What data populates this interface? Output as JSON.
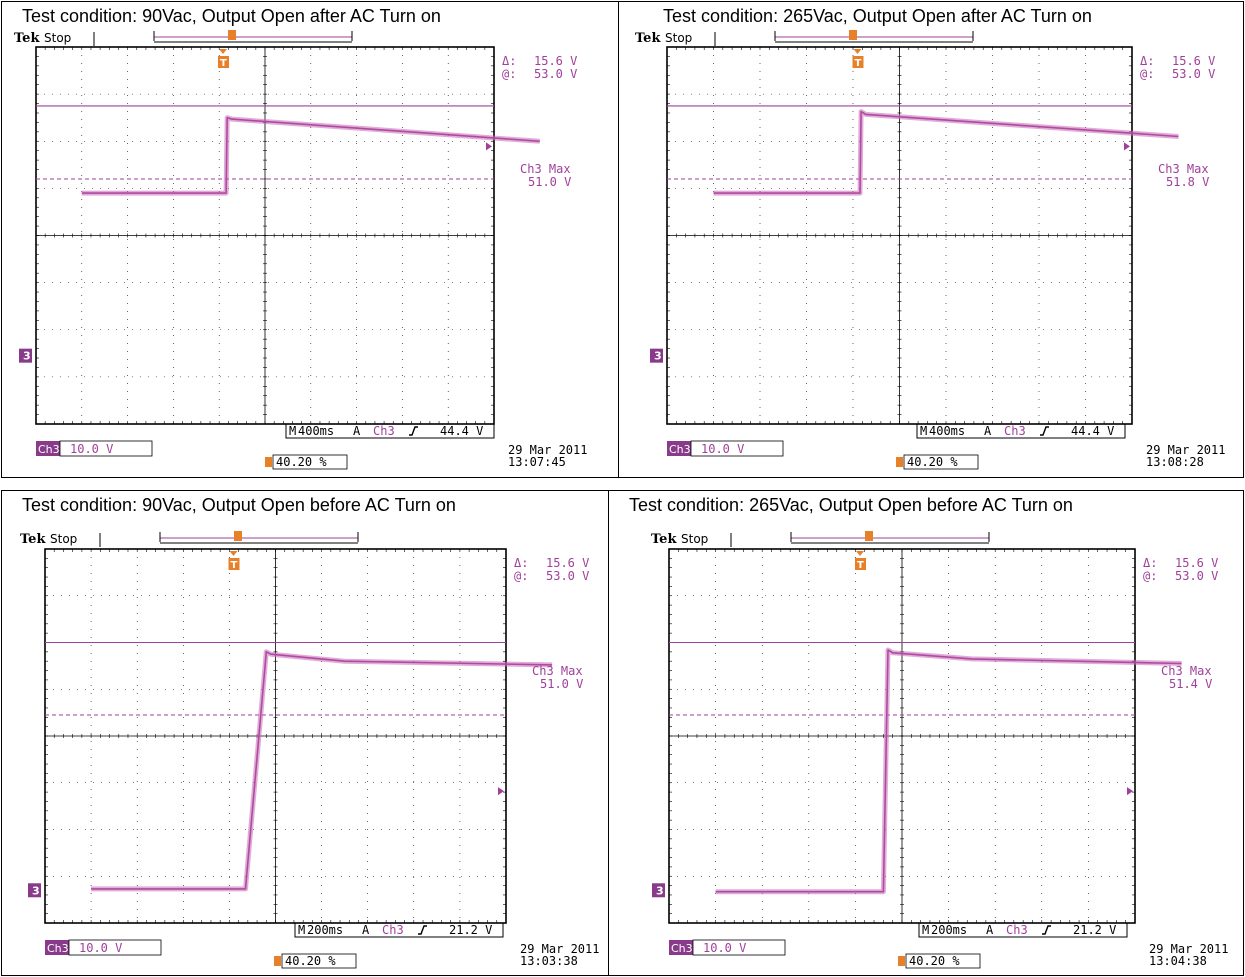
{
  "colors": {
    "trace": "#b04aa0",
    "trace_fill": "#c868b8",
    "cursor": "#a0409a",
    "trigger": "#e8802a",
    "badge_bg": "#8a3a8a"
  },
  "common": {
    "brand": "Tek",
    "status": "Stop",
    "delta_sym": "Δ:",
    "at_sym": "@:",
    "delta_val": "15.6 V",
    "at_val": "53.0 V",
    "ch_label": "Ch3",
    "volts_div": "10.0 V",
    "max_label": "Ch3 Max",
    "mode_M": "M",
    "mode_A": "A",
    "trig_ch": "Ch3",
    "pos_pct": "40.20 %",
    "date": "29 Mar 2011",
    "marker_3": "3",
    "trig_marker": "T"
  },
  "panels": [
    {
      "caption": "Test condition: 90Vac, Output Open after AC Turn on",
      "time_div": "400ms",
      "trig_level": "44.4 V",
      "max_val": "51.0 V",
      "time": "13:07:45"
    },
    {
      "caption": "Test condition: 265Vac, Output Open after AC Turn on",
      "time_div": "400ms",
      "trig_level": "44.4 V",
      "max_val": "51.8 V",
      "time": "13:08:28"
    },
    {
      "caption": "Test condition: 90Vac, Output Open before AC Turn on",
      "time_div": "200ms",
      "trig_level": "21.2 V",
      "max_val": "51.0 V",
      "time": "13:03:38"
    },
    {
      "caption": "Test condition: 265Vac, Output Open before AC Turn on",
      "time_div": "200ms",
      "trig_level": "21.2 V",
      "max_val": "51.4 V",
      "time": "13:04:38"
    }
  ],
  "chart_data": [
    {
      "type": "line",
      "title": "Test condition: 90Vac, Output Open after AC Turn on",
      "x_unit": "ms",
      "x_div": 400,
      "y_unit": "V",
      "y_div": 10,
      "xlim": [
        -1600,
        2400
      ],
      "ylim": [
        0,
        80
      ],
      "ground_ref_div": 1.45,
      "series": [
        {
          "x": [
            -1600,
            -340,
            -330,
            -290,
            2400
          ],
          "y": [
            34.5,
            34.5,
            50.5,
            50.2,
            45.5
          ]
        }
      ],
      "cursors_V": [
        37.5,
        53.0
      ],
      "trigger_level_V": 44.4
    },
    {
      "type": "line",
      "title": "Test condition: 265Vac, Output Open after AC Turn on",
      "x_unit": "ms",
      "x_div": 400,
      "y_unit": "V",
      "y_div": 10,
      "xlim": [
        -1600,
        2400
      ],
      "ylim": [
        0,
        80
      ],
      "ground_ref_div": 1.45,
      "series": [
        {
          "x": [
            -1600,
            -340,
            -330,
            -290,
            2400
          ],
          "y": [
            34.5,
            34.5,
            51.8,
            51.2,
            46.5
          ]
        }
      ],
      "cursors_V": [
        37.5,
        53.0
      ],
      "trigger_level_V": 44.4
    },
    {
      "type": "line",
      "title": "Test condition: 90Vac, Output Open before AC Turn on",
      "x_unit": "ms",
      "x_div": 200,
      "y_unit": "V",
      "y_div": 10,
      "xlim": [
        -800,
        1200
      ],
      "ylim": [
        0,
        80
      ],
      "ground_ref_div": 0.7,
      "series": [
        {
          "x": [
            -800,
            -130,
            -40,
            -20,
            300,
            1200
          ],
          "y": [
            0.3,
            0.3,
            51.0,
            50.5,
            49.0,
            48.2
          ]
        }
      ],
      "cursors_V": [
        37.5,
        53.0
      ],
      "trigger_level_V": 21.2
    },
    {
      "type": "line",
      "title": "Test condition: 265Vac, Output Open before AC Turn on",
      "x_unit": "ms",
      "x_div": 200,
      "y_unit": "V",
      "y_div": 10,
      "xlim": [
        -800,
        1200
      ],
      "ylim": [
        0,
        80
      ],
      "ground_ref_div": 0.7,
      "series": [
        {
          "x": [
            -800,
            -80,
            -60,
            -40,
            300,
            1200
          ],
          "y": [
            -0.3,
            -0.3,
            51.4,
            50.8,
            49.5,
            48.5
          ]
        }
      ],
      "cursors_V": [
        37.5,
        53.0
      ],
      "trigger_level_V": 21.2
    }
  ]
}
